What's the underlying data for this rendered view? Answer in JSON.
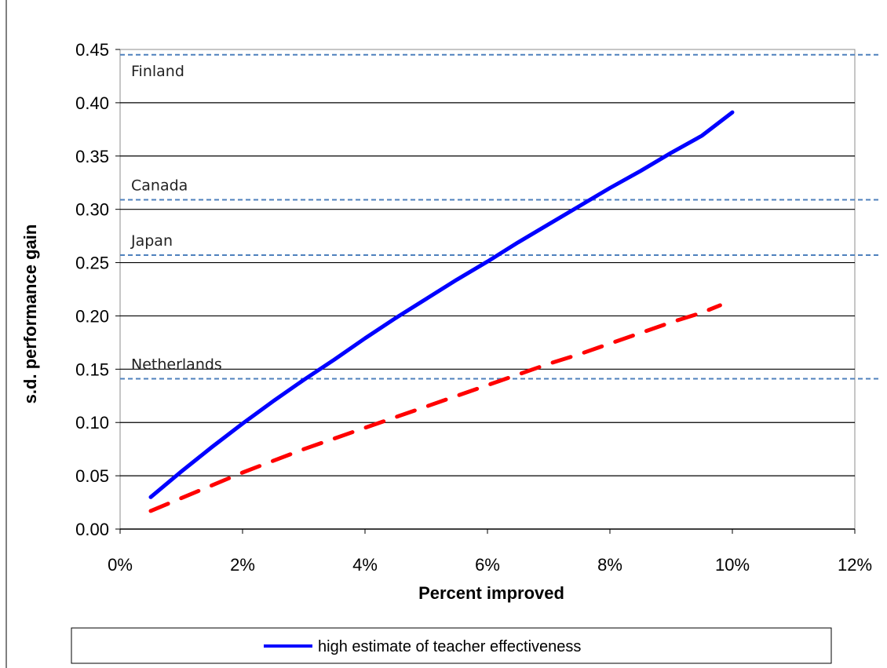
{
  "chart_data": {
    "type": "line",
    "title": "",
    "xlabel": "Percent improved",
    "ylabel": "s.d. performance gain",
    "xlim": [
      0,
      12
    ],
    "ylim": [
      0,
      0.45
    ],
    "x_ticks": [
      "0%",
      "2%",
      "4%",
      "6%",
      "8%",
      "10%",
      "12%"
    ],
    "y_ticks": [
      "0.00",
      "0.05",
      "0.10",
      "0.15",
      "0.20",
      "0.25",
      "0.30",
      "0.35",
      "0.40",
      "0.45"
    ],
    "grid": "horizontal",
    "legend_position": "bottom",
    "series": [
      {
        "name": "high estimate of teacher effectiveness",
        "style": "solid",
        "color": "#0000ff",
        "x": [
          0.5,
          1,
          1.5,
          2,
          2.5,
          3,
          3.5,
          4,
          4.5,
          5,
          5.5,
          6,
          6.5,
          7,
          7.5,
          8,
          8.5,
          9,
          9.5,
          10
        ],
        "y": [
          0.03,
          0.054,
          0.077,
          0.099,
          0.12,
          0.14,
          0.159,
          0.179,
          0.198,
          0.216,
          0.234,
          0.251,
          0.269,
          0.286,
          0.303,
          0.32,
          0.336,
          0.353,
          0.369,
          0.391
        ]
      },
      {
        "style": "dashed",
        "color": "#ff0000",
        "x": [
          0.5,
          1,
          1.5,
          2,
          2.5,
          3,
          3.5,
          4,
          4.5,
          5,
          5.5,
          6,
          6.5,
          7,
          7.5,
          8,
          8.5,
          9,
          9.5,
          9.8
        ],
        "y": [
          0.017,
          0.029,
          0.041,
          0.053,
          0.064,
          0.075,
          0.085,
          0.095,
          0.105,
          0.115,
          0.125,
          0.135,
          0.145,
          0.155,
          0.164,
          0.174,
          0.184,
          0.194,
          0.203,
          0.21
        ]
      }
    ],
    "reference_lines": [
      {
        "label": "Finland",
        "value": 0.445,
        "color": "#4f81bd"
      },
      {
        "label": "Canada",
        "value": 0.309,
        "color": "#4f81bd"
      },
      {
        "label": "Japan",
        "value": 0.257,
        "color": "#4f81bd"
      },
      {
        "label": "Netherlands",
        "value": 0.141,
        "color": "#4f81bd"
      }
    ],
    "legend": {
      "entries": [
        {
          "label": "high estimate of teacher effectiveness",
          "color": "#0000ff",
          "style": "solid"
        }
      ]
    }
  }
}
